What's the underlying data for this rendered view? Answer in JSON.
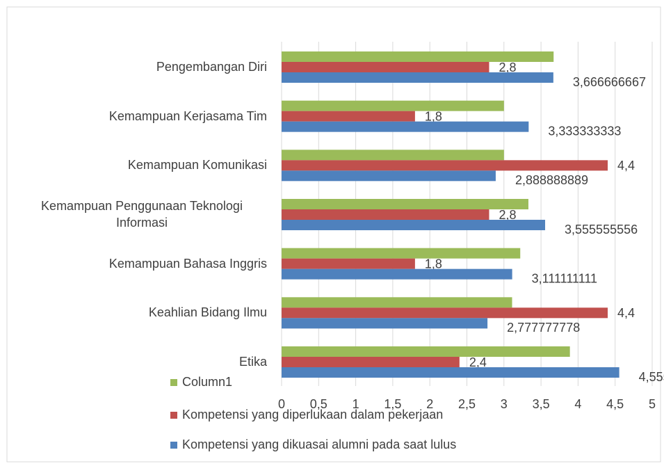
{
  "chart_data": {
    "type": "bar",
    "orientation": "horizontal",
    "categories": [
      "Pengembangan Diri",
      "Kemampuan Kerjasama Tim",
      "Kemampuan Komunikasi",
      "Kemampuan Penggunaan Teknologi Informasi",
      "Kemampuan Bahasa Inggris",
      "Keahlian Bidang Ilmu",
      "Etika"
    ],
    "series": [
      {
        "name": "Column1",
        "color": "#9bbb59",
        "values": [
          3.67,
          3.0,
          3.0,
          3.33,
          3.22,
          3.11,
          3.89
        ]
      },
      {
        "name": "Kompetensi yang diperlukaan dalam pekerjaan",
        "color": "#c0504d",
        "values": [
          2.8,
          1.8,
          4.4,
          2.8,
          1.8,
          4.4,
          2.4
        ],
        "value_labels": [
          "2,8",
          "1,8",
          "4,4",
          "2,8",
          "1,8",
          "4,4",
          "2,4"
        ]
      },
      {
        "name": "Kompetensi yang dikuasai alumni pada saat lulus",
        "color": "#4f81bd",
        "values": [
          3.666666667,
          3.333333333,
          2.888888889,
          3.555555556,
          3.111111111,
          2.777777778,
          4.555555556
        ],
        "value_labels": [
          "3,666666667",
          "3,333333333",
          "2,888888889",
          "3,555555556",
          "3,111111111",
          "2,777777778",
          "4,555555556"
        ]
      }
    ],
    "xlim": [
      0,
      5
    ],
    "xticks": [
      0,
      {
        "value": 0.5,
        "label": "0,5"
      },
      1,
      {
        "value": 1.5,
        "label": "1,5"
      },
      2,
      {
        "value": 2.5,
        "label": "2,5"
      },
      3,
      {
        "value": 3.5,
        "label": "3,5"
      },
      4,
      {
        "value": 4.5,
        "label": "4,5"
      },
      5
    ],
    "grid": true,
    "legend": "bottom-left"
  }
}
